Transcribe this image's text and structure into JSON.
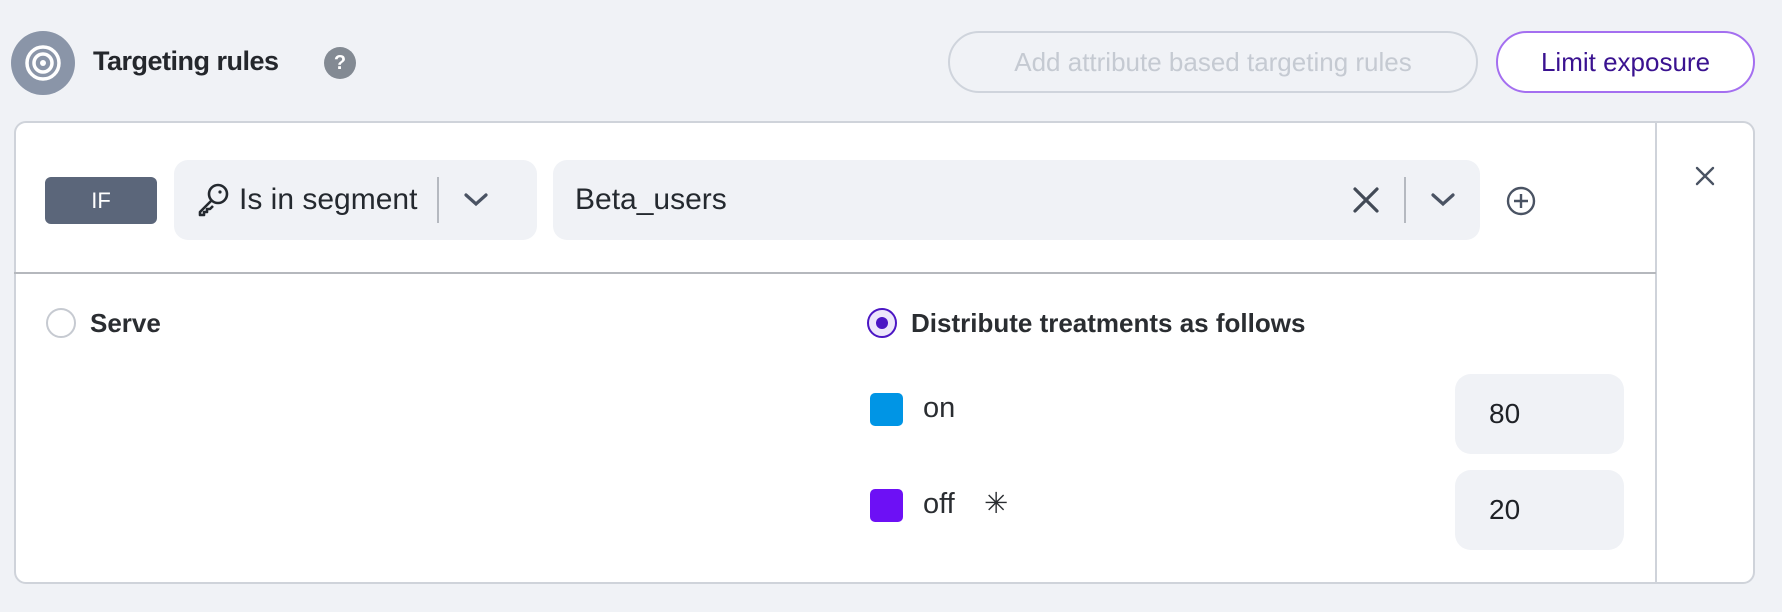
{
  "header": {
    "icon": "target-icon",
    "title": "Targeting rules",
    "help_icon": "question-icon",
    "help_glyph": "?",
    "add_rules_label": "Add attribute based targeting rules",
    "limit_exposure_label": "Limit exposure"
  },
  "rule": {
    "if_label": "IF",
    "matcher": {
      "icon": "key-icon",
      "value": "Is in segment"
    },
    "segment": {
      "value": "Beta_users"
    }
  },
  "serve": {
    "label": "Serve",
    "selected": false
  },
  "distribute": {
    "label": "Distribute treatments as follows",
    "selected": true,
    "treatments": [
      {
        "name": "on",
        "color": "#0095e5",
        "value": "80"
      },
      {
        "name": "off",
        "color": "#6d10f5",
        "value": "20",
        "default_marker": "✳"
      }
    ]
  },
  "colors": {
    "accent": "#4b16c4",
    "limit_border": "#a46ff0"
  }
}
